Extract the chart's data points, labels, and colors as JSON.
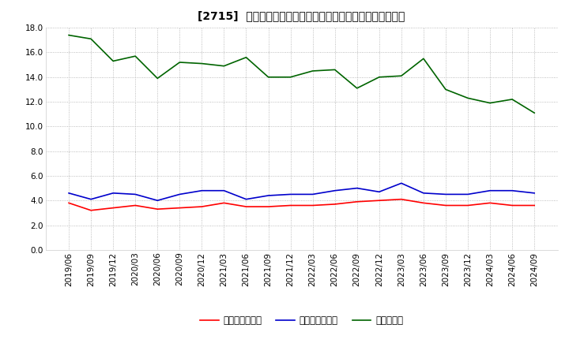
{
  "title": "[2715]  売上債権回転率、買入債務回転率、在庫回転率の推移",
  "x_labels": [
    "2019/06",
    "2019/09",
    "2019/12",
    "2020/03",
    "2020/06",
    "2020/09",
    "2020/12",
    "2021/03",
    "2021/06",
    "2021/09",
    "2021/12",
    "2022/03",
    "2022/06",
    "2022/09",
    "2022/12",
    "2023/03",
    "2023/06",
    "2023/09",
    "2023/12",
    "2024/03",
    "2024/06",
    "2024/09"
  ],
  "receivables_turnover": [
    3.8,
    3.2,
    3.4,
    3.6,
    3.3,
    3.4,
    3.5,
    3.8,
    3.5,
    3.5,
    3.6,
    3.6,
    3.7,
    3.9,
    4.0,
    4.1,
    3.8,
    3.6,
    3.6,
    3.8,
    3.6,
    3.6
  ],
  "payables_turnover": [
    4.6,
    4.1,
    4.6,
    4.5,
    4.0,
    4.5,
    4.8,
    4.8,
    4.1,
    4.4,
    4.5,
    4.5,
    4.8,
    5.0,
    4.7,
    5.4,
    4.6,
    4.5,
    4.5,
    4.8,
    4.8,
    4.6
  ],
  "inventory_turnover": [
    17.4,
    17.1,
    15.3,
    15.7,
    13.9,
    15.2,
    15.1,
    14.9,
    15.6,
    14.0,
    14.0,
    14.5,
    14.6,
    13.1,
    14.0,
    14.1,
    15.5,
    13.0,
    12.3,
    11.9,
    12.2,
    11.1
  ],
  "receivables_color": "#ff0000",
  "payables_color": "#0000cc",
  "inventory_color": "#006400",
  "legend_labels": [
    "売上債権回転率",
    "買入債務回転率",
    "在庫回転率"
  ],
  "ylim": [
    0.0,
    18.0
  ],
  "yticks": [
    0.0,
    2.0,
    4.0,
    6.0,
    8.0,
    10.0,
    12.0,
    14.0,
    16.0,
    18.0
  ],
  "background_color": "#ffffff",
  "grid_color": "#aaaaaa",
  "title_fontsize": 10,
  "axis_fontsize": 7.5,
  "legend_fontsize": 8.5
}
